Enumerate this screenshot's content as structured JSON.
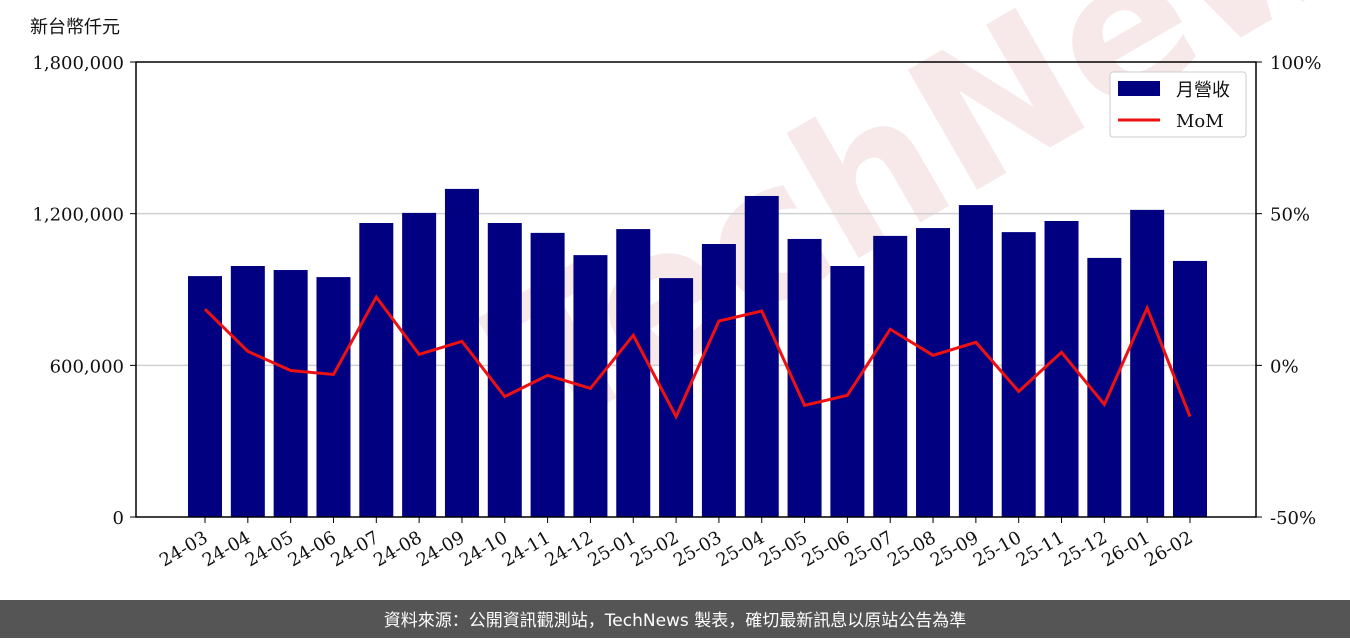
{
  "chart_data": {
    "type": "bar_line",
    "y_unit": "新台幣仟元",
    "watermark": "TechNews",
    "footer": "資料來源：公開資訊觀測站，TechNews 製表，確切最新訊息以原站公告為準",
    "categories": [
      "24-03",
      "24-04",
      "24-05",
      "24-06",
      "24-07",
      "24-08",
      "24-09",
      "24-10",
      "24-11",
      "24-12",
      "25-01",
      "25-02",
      "25-03",
      "25-04",
      "25-05",
      "25-06",
      "25-07",
      "25-08",
      "25-09",
      "25-10",
      "25-11",
      "25-12",
      "26-01",
      "26-02"
    ],
    "series": [
      {
        "name": "月營收",
        "color": "#000080",
        "values": [
          953000,
          993000,
          977000,
          949000,
          1163000,
          1203000,
          1298000,
          1163000,
          1124000,
          1036000,
          1139000,
          945000,
          1080000,
          1270000,
          1100000,
          993000,
          1112000,
          1143000,
          1234000,
          1127000,
          1171000,
          1025000,
          1215000,
          1013000
        ]
      },
      {
        "name": "MoM",
        "color": "#ee1111",
        "axis": "y2",
        "values": [
          18.5,
          4.6,
          -1.7,
          -3.0,
          22.5,
          3.6,
          7.9,
          -10.3,
          -3.3,
          -7.6,
          9.9,
          -16.9,
          14.6,
          17.9,
          -13.2,
          -9.9,
          11.9,
          3.3,
          7.6,
          -8.6,
          4.3,
          -12.9,
          18.9,
          -16.9
        ]
      }
    ],
    "ylim": [
      0,
      1800000
    ],
    "yticks": [
      0,
      {
        "value": 600000,
        "label": "600,000"
      },
      {
        "value": 1200000,
        "label": "1,200,000"
      },
      {
        "value": 1800000,
        "label": "1,800,000"
      }
    ],
    "y2lim": [
      -50,
      100
    ],
    "y2ticks": [
      {
        "value": -50,
        "label": "-50%"
      },
      {
        "value": 0,
        "label": "0%"
      },
      {
        "value": 50,
        "label": "50%"
      },
      {
        "value": 100,
        "label": "100%"
      }
    ],
    "grid": true,
    "legend": "upper right"
  }
}
